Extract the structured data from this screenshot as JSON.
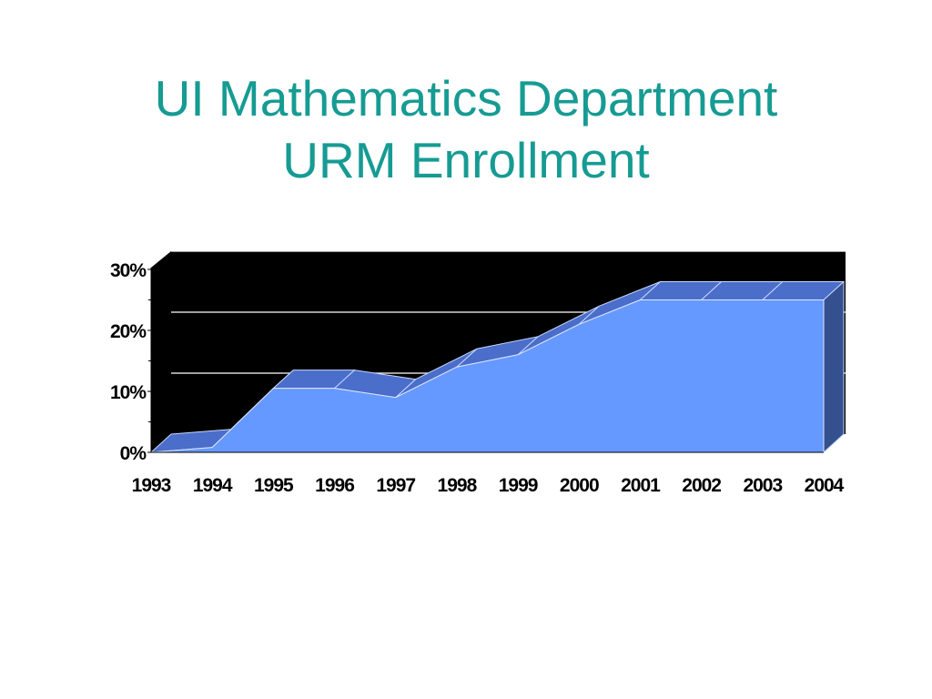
{
  "slide": {
    "title_line1": "UI Mathematics Department",
    "title_line2": "URM Enrollment"
  },
  "colors": {
    "title": "#169b93",
    "plot_background": "#000000",
    "area_front": "#6699ff",
    "area_top": "#4a6ec9",
    "area_side": "#34508f",
    "gridlines": "#ffffff"
  },
  "chart_data": {
    "type": "area",
    "style": "3d",
    "title": "UI Mathematics Department URM Enrollment",
    "xlabel": "",
    "ylabel": "",
    "x": [
      "1993",
      "1994",
      "1995",
      "1996",
      "1997",
      "1998",
      "1999",
      "2000",
      "2001",
      "2002",
      "2003",
      "2004"
    ],
    "series": [
      {
        "values": [
          0,
          0.8,
          10.5,
          10.5,
          9,
          14,
          16,
          21,
          25,
          25,
          25,
          25
        ]
      }
    ],
    "ylim": [
      0,
      30
    ],
    "y_ticks": [
      "0%",
      "10%",
      "20%",
      "30%"
    ],
    "y_tick_values": [
      0,
      10,
      20,
      30
    ],
    "grid": true,
    "legend": "none"
  }
}
